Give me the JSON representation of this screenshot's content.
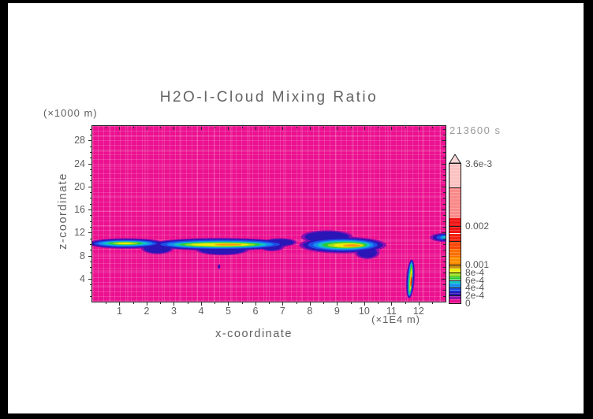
{
  "title": "H2O-I-Cloud Mixing Ratio",
  "timestamp": "213600 s",
  "axes": {
    "x": {
      "label": "x-coordinate",
      "unit_label": "(×1E4 m)",
      "major_ticks": [
        1,
        2,
        3,
        4,
        5,
        6,
        7,
        8,
        9,
        10,
        11,
        12
      ],
      "minor_step": 0.5,
      "max": 12.99
    },
    "z": {
      "label": "z-coordinate",
      "unit_label": "(×1000 m)",
      "major_ticks": [
        4,
        8,
        12,
        16,
        20,
        24,
        28
      ],
      "minor_step": 1,
      "max": 30.5
    }
  },
  "colorbar": {
    "vmin": 0,
    "vmax": 0.0036,
    "cap_color": "#FBD8D8",
    "labels": [
      {
        "text": "3.6e-3",
        "value": 0.0036
      },
      {
        "text": "0.002",
        "value": 0.002
      },
      {
        "text": "0.001",
        "value": 0.001
      },
      {
        "text": "8e-4",
        "value": 0.0008
      },
      {
        "text": "6e-4",
        "value": 0.0006
      },
      {
        "text": "4e-4",
        "value": 0.0004
      },
      {
        "text": "2e-4",
        "value": 0.0002
      },
      {
        "text": "0",
        "value": 0
      }
    ],
    "lines": [
      0.0002,
      0.0004,
      0.0006,
      0.0008,
      0.001,
      0.0016,
      0.002,
      0.003
    ],
    "bands": [
      {
        "from": 0,
        "to": 0.0001,
        "color": "#EB1190"
      },
      {
        "from": 0.0001,
        "to": 0.0002,
        "color": "#8E0DB0"
      },
      {
        "from": 0.0002,
        "to": 0.0003,
        "color": "#2A16B6"
      },
      {
        "from": 0.0003,
        "to": 0.0004,
        "color": "#1D4FE8"
      },
      {
        "from": 0.0004,
        "to": 0.0005,
        "color": "#168FF0"
      },
      {
        "from": 0.0005,
        "to": 0.0006,
        "color": "#12C6C2"
      },
      {
        "from": 0.0006,
        "to": 0.0007,
        "color": "#2BC737"
      },
      {
        "from": 0.0007,
        "to": 0.0008,
        "color": "#9BDE20"
      },
      {
        "from": 0.0008,
        "to": 0.0009,
        "color": "#EDED0B"
      },
      {
        "from": 0.0009,
        "to": 0.001,
        "color": "#C98E10"
      },
      {
        "from": 0.001,
        "to": 0.0012,
        "color": "#FC8E00"
      },
      {
        "from": 0.0012,
        "to": 0.0014,
        "color": "#FB6F04"
      },
      {
        "from": 0.0014,
        "to": 0.0016,
        "color": "#FA4708"
      },
      {
        "from": 0.0016,
        "to": 0.0018,
        "color": "#F4220E"
      },
      {
        "from": 0.0018,
        "to": 0.0022,
        "color": "#EF1414"
      },
      {
        "from": 0.0022,
        "to": 0.003,
        "color": "#F98A8A"
      },
      {
        "from": 0.003,
        "to": 0.0036,
        "color": "#FBC2C2"
      }
    ]
  },
  "chart_data": {
    "type": "heatmap",
    "title": "H2O-I-Cloud Mixing Ratio",
    "xlabel": "x-coordinate (×1E4 m)",
    "ylabel": "z-coordinate (×1000 m)",
    "time_label": "213600 s",
    "x_range": [
      0,
      12.99
    ],
    "z_range": [
      0,
      30.5
    ],
    "value_range": [
      0,
      0.0036
    ],
    "background_value": 0,
    "legend_position": "right-colorbar",
    "features": [
      {
        "desc": "stratiform ice-cloud band",
        "x_extent": [
          0,
          7.3
        ],
        "z_center": 10,
        "peak_value": 0.001,
        "peak_x": [
          4.6,
          5.5
        ],
        "secondary_core_x": 1.25
      },
      {
        "desc": "ice-cloud band",
        "x_extent": [
          7.9,
          10.6
        ],
        "z_center": 9.8,
        "peak_value": 0.001,
        "peak_x": [
          9.3,
          9.9
        ]
      },
      {
        "desc": "cloud fragment clipped at right plot edge",
        "x_extent": [
          12.5,
          12.99
        ],
        "z_center": 11.2,
        "peak_value": 0.0005
      },
      {
        "desc": "thin vertical plume",
        "x_center": 11.7,
        "z_extent": [
          0.8,
          7.3
        ],
        "peak_value": 0.002
      },
      {
        "desc": "tiny speck",
        "x_center": 4.66,
        "z_center": 6.1,
        "peak_value": 0.0002
      }
    ],
    "palette": {
      "magenta": "#EB1190",
      "purple": "#8E0DB0",
      "navy": "#2A16B6",
      "blue": "#1D4FE8",
      "azure": "#168FF0",
      "cyan": "#12C6C2",
      "green": "#2BC737",
      "ygreen": "#9BDE20",
      "yellow": "#EDED0B",
      "olive": "#C98E10",
      "orange": "#F89B12",
      "red": "#F02010"
    },
    "blobs": [
      {
        "c": "purple",
        "x": 1.25,
        "z": 10.1,
        "rx": 1.42,
        "rz": 0.92
      },
      {
        "c": "purple",
        "x": 2.4,
        "z": 9.4,
        "rx": 0.62,
        "rz": 1.15
      },
      {
        "c": "purple",
        "x": 4.7,
        "z": 9.95,
        "rx": 2.58,
        "rz": 1.12
      },
      {
        "c": "purple",
        "x": 4.78,
        "z": 9.1,
        "rx": 1.0,
        "rz": 1.05
      },
      {
        "c": "purple",
        "x": 6.9,
        "z": 10.3,
        "rx": 0.62,
        "rz": 0.72
      },
      {
        "c": "purple",
        "x": 6.6,
        "z": 9.6,
        "rx": 0.48,
        "rz": 0.85
      },
      {
        "c": "purple",
        "x": 9.21,
        "z": 9.82,
        "rx": 1.6,
        "rz": 1.45
      },
      {
        "c": "purple",
        "x": 8.63,
        "z": 11.25,
        "rx": 0.95,
        "rz": 1.15
      },
      {
        "c": "purple",
        "x": 10.11,
        "z": 8.55,
        "rx": 0.46,
        "rz": 1.15
      },
      {
        "c": "purple",
        "x": 12.92,
        "z": 11.15,
        "rx": 0.5,
        "rz": 0.76
      },
      {
        "c": "purple",
        "x": 4.66,
        "z": 6.1,
        "rx": 0.05,
        "rz": 0.42
      },
      {
        "c": "purple",
        "x": 11.7,
        "z": 3.95,
        "rx": 0.16,
        "rz": 3.35,
        "rot": 4
      },
      {
        "c": "navy",
        "x": 1.25,
        "z": 10.1,
        "rx": 1.32,
        "rz": 0.76
      },
      {
        "c": "navy",
        "x": 2.4,
        "z": 9.4,
        "rx": 0.52,
        "rz": 1.0
      },
      {
        "c": "navy",
        "x": 4.7,
        "z": 9.95,
        "rx": 2.46,
        "rz": 0.96
      },
      {
        "c": "navy",
        "x": 4.78,
        "z": 9.1,
        "rx": 0.88,
        "rz": 0.9
      },
      {
        "c": "navy",
        "x": 6.9,
        "z": 10.3,
        "rx": 0.52,
        "rz": 0.58
      },
      {
        "c": "navy",
        "x": 6.6,
        "z": 9.6,
        "rx": 0.38,
        "rz": 0.7
      },
      {
        "c": "navy",
        "x": 7.33,
        "z": 10.35,
        "rx": 0.09,
        "rz": 0.2
      },
      {
        "c": "navy",
        "x": 9.21,
        "z": 9.82,
        "rx": 1.47,
        "rz": 1.25
      },
      {
        "c": "navy",
        "x": 8.63,
        "z": 11.25,
        "rx": 0.82,
        "rz": 0.95
      },
      {
        "c": "navy",
        "x": 10.11,
        "z": 8.55,
        "rx": 0.36,
        "rz": 0.95
      },
      {
        "c": "navy",
        "x": 12.92,
        "z": 11.15,
        "rx": 0.4,
        "rz": 0.6
      },
      {
        "c": "navy",
        "x": 4.66,
        "z": 6.1,
        "rx": 0.035,
        "rz": 0.3
      },
      {
        "c": "navy",
        "x": 11.7,
        "z": 3.95,
        "rx": 0.13,
        "rz": 3.3,
        "rot": 4
      },
      {
        "c": "blue",
        "x": 1.22,
        "z": 10.1,
        "rx": 1.15,
        "rz": 0.6
      },
      {
        "c": "blue",
        "x": 4.7,
        "z": 9.95,
        "rx": 2.2,
        "rz": 0.78
      },
      {
        "c": "blue",
        "x": 9.21,
        "z": 9.85,
        "rx": 1.28,
        "rz": 1.02
      },
      {
        "c": "blue",
        "x": 12.94,
        "z": 11.15,
        "rx": 0.28,
        "rz": 0.44
      },
      {
        "c": "blue",
        "x": 11.7,
        "z": 3.95,
        "rx": 0.1,
        "rz": 3.1,
        "rot": 4
      },
      {
        "c": "azure",
        "x": 1.22,
        "z": 10.1,
        "rx": 1.0,
        "rz": 0.48
      },
      {
        "c": "azure",
        "x": 4.7,
        "z": 9.93,
        "rx": 1.95,
        "rz": 0.63
      },
      {
        "c": "azure",
        "x": 9.23,
        "z": 9.85,
        "rx": 1.11,
        "rz": 0.85
      },
      {
        "c": "azure",
        "x": 12.96,
        "z": 11.15,
        "rx": 0.17,
        "rz": 0.3
      },
      {
        "c": "cyan",
        "x": 1.22,
        "z": 10.12,
        "rx": 0.82,
        "rz": 0.37
      },
      {
        "c": "cyan",
        "x": 4.7,
        "z": 9.92,
        "rx": 1.7,
        "rz": 0.51
      },
      {
        "c": "cyan",
        "x": 9.25,
        "z": 9.85,
        "rx": 0.96,
        "rz": 0.7
      },
      {
        "c": "cyan",
        "x": 12.97,
        "z": 11.15,
        "rx": 0.1,
        "rz": 0.18
      },
      {
        "c": "cyan",
        "x": 11.7,
        "z": 3.95,
        "rx": 0.075,
        "rz": 2.85,
        "rot": 4
      },
      {
        "c": "green",
        "x": 1.22,
        "z": 10.12,
        "rx": 0.64,
        "rz": 0.28
      },
      {
        "c": "green",
        "x": 4.7,
        "z": 9.92,
        "rx": 1.5,
        "rz": 0.41
      },
      {
        "c": "green",
        "x": 9.28,
        "z": 9.83,
        "rx": 0.82,
        "rz": 0.56
      },
      {
        "c": "green",
        "x": 11.71,
        "z": 3.9,
        "rx": 0.055,
        "rz": 2.5,
        "rot": 4
      },
      {
        "c": "ygreen",
        "x": 1.22,
        "z": 10.12,
        "rx": 0.46,
        "rz": 0.21
      },
      {
        "c": "ygreen",
        "x": 4.7,
        "z": 9.9,
        "rx": 1.3,
        "rz": 0.33
      },
      {
        "c": "ygreen",
        "x": 9.33,
        "z": 9.8,
        "rx": 0.68,
        "rz": 0.44
      },
      {
        "c": "ygreen",
        "x": 11.71,
        "z": 3.85,
        "rx": 0.042,
        "rz": 2.1,
        "rot": 4
      },
      {
        "c": "yellow",
        "x": 1.2,
        "z": 10.12,
        "rx": 0.28,
        "rz": 0.14
      },
      {
        "c": "yellow",
        "x": 4.7,
        "z": 9.9,
        "rx": 1.05,
        "rz": 0.25
      },
      {
        "c": "yellow",
        "x": 9.4,
        "z": 9.78,
        "rx": 0.53,
        "rz": 0.34
      },
      {
        "c": "yellow",
        "x": 11.72,
        "z": 3.8,
        "rx": 0.032,
        "rz": 1.7,
        "rot": 4
      },
      {
        "c": "orange",
        "x": 5.0,
        "z": 9.9,
        "rx": 0.5,
        "rz": 0.16
      },
      {
        "c": "orange",
        "x": 9.55,
        "z": 9.75,
        "rx": 0.33,
        "rz": 0.22
      },
      {
        "c": "orange",
        "x": 11.72,
        "z": 3.7,
        "rx": 0.024,
        "rz": 1.25,
        "rot": 4
      },
      {
        "c": "red",
        "x": 11.73,
        "z": 3.5,
        "rx": 0.016,
        "rz": 0.8,
        "rot": 4
      }
    ]
  }
}
